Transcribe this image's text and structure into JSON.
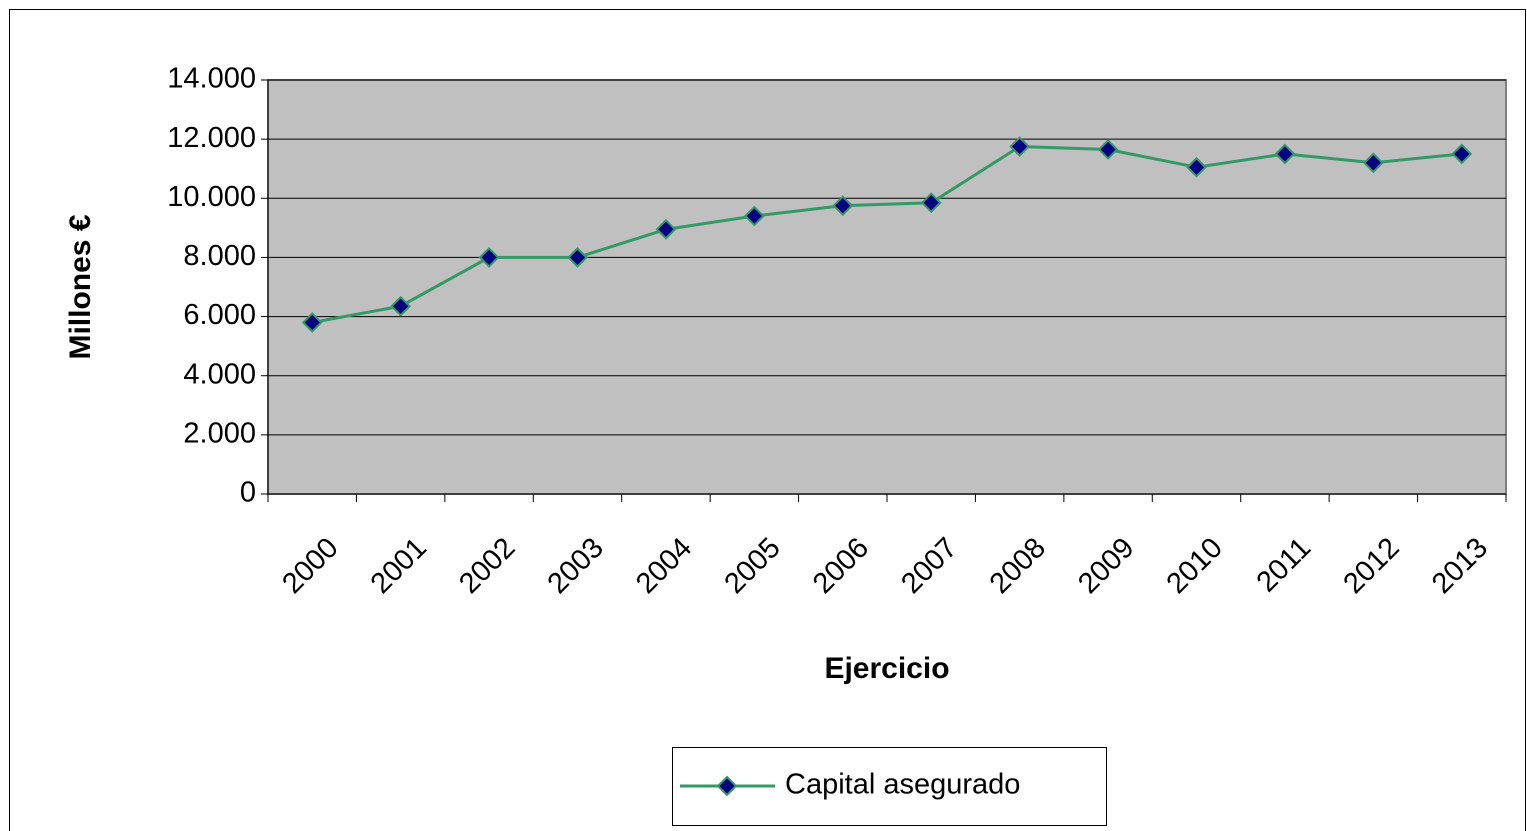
{
  "chart_data": {
    "type": "line",
    "x_label": "Ejercicio",
    "y_label": "Millones €",
    "categories": [
      "2000",
      "2001",
      "2002",
      "2003",
      "2004",
      "2005",
      "2006",
      "2007",
      "2008",
      "2009",
      "2010",
      "2011",
      "2012",
      "2013"
    ],
    "series": [
      {
        "name": "Capital asegurado",
        "color": "#339966",
        "marker_color": "#000080",
        "values": [
          5800,
          6350,
          8000,
          8000,
          8950,
          9400,
          9750,
          9850,
          11750,
          11650,
          11050,
          11500,
          11200,
          11500
        ]
      }
    ],
    "ylim": [
      0,
      14000
    ],
    "yticks": [
      0,
      {
        "value": 2000,
        "label": "2.000"
      },
      {
        "value": 4000,
        "label": "4.000"
      },
      {
        "value": 6000,
        "label": "6.000"
      },
      {
        "value": 8000,
        "label": "8.000"
      },
      {
        "value": 10000,
        "label": "10.000"
      },
      {
        "value": 12000,
        "label": "12.000"
      },
      {
        "value": 14000,
        "label": "14.000"
      }
    ],
    "grid": true,
    "plot_background": "#c0c0c0",
    "legend": "bottom"
  }
}
